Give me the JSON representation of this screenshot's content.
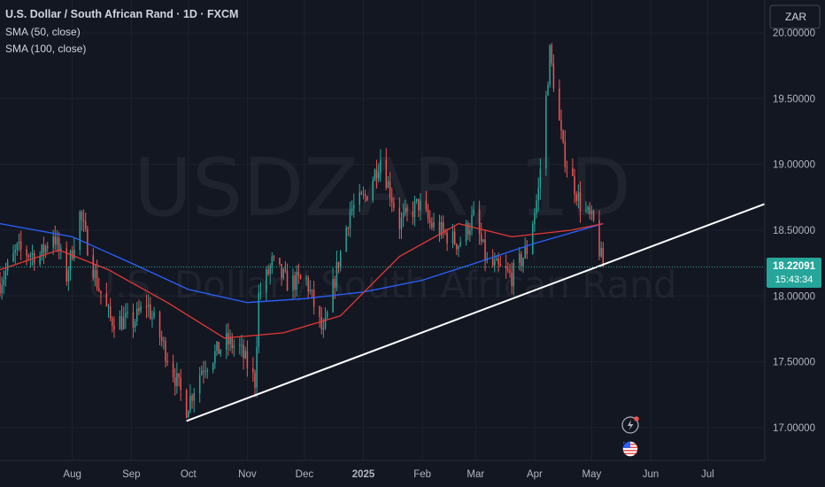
{
  "header": {
    "title": "U.S. Dollar / South African Rand · 1D · FXCM",
    "indicators": [
      "SMA (50, close)",
      "SMA (100, close)"
    ]
  },
  "currency_button": "ZAR",
  "watermark": {
    "symbol": "USDZAR, 1D",
    "name": "U.S. Dollar / South African Rand"
  },
  "price_label": {
    "price": "18.22091",
    "countdown": "15:43:34"
  },
  "colors": {
    "background": "#131722",
    "grid": "#1e222d",
    "up": "#26a69a",
    "down": "#ef5350",
    "sma50": "#e53935",
    "sma100": "#2962ff",
    "trendline": "#ffffff",
    "price_tag": "#26a69a",
    "axis_text": "#b2b5be"
  },
  "icons": {
    "flash": "lightning-alert-icon",
    "flag": "us-flag-icon"
  },
  "chart_data": {
    "type": "candlestick",
    "y_ticks": [
      "20.00000",
      "19.50000",
      "19.00000",
      "18.50000",
      "18.00000",
      "17.50000",
      "17.00000"
    ],
    "y_range": [
      16.75,
      20.25
    ],
    "x_ticks": [
      "Aug",
      "Sep",
      "Oct",
      "Nov",
      "Dec",
      "2025",
      "Feb",
      "Mar",
      "Apr",
      "May",
      "Jun",
      "Jul"
    ],
    "x_range": [
      "2024-06-24",
      "2025-07-31"
    ],
    "tick_dates": [
      "2024-08-01",
      "2024-09-01",
      "2024-10-01",
      "2024-11-01",
      "2024-12-01",
      "2025-01-01",
      "2025-02-01",
      "2025-03-01",
      "2025-04-01",
      "2025-05-01",
      "2025-06-01",
      "2025-07-01"
    ],
    "last_price": 18.22091,
    "price_anchors": [
      {
        "date": "2024-06-24",
        "close": 18.1
      },
      {
        "date": "2024-07-03",
        "close": 18.35
      },
      {
        "date": "2024-07-15",
        "close": 18.3
      },
      {
        "date": "2024-07-22",
        "close": 18.48
      },
      {
        "date": "2024-07-29",
        "close": 18.15
      },
      {
        "date": "2024-08-05",
        "close": 18.62
      },
      {
        "date": "2024-08-14",
        "close": 18.1
      },
      {
        "date": "2024-08-21",
        "close": 17.82
      },
      {
        "date": "2024-09-02",
        "close": 17.8
      },
      {
        "date": "2024-09-09",
        "close": 17.95
      },
      {
        "date": "2024-09-18",
        "close": 17.62
      },
      {
        "date": "2024-09-30",
        "close": 17.15
      },
      {
        "date": "2024-10-08",
        "close": 17.45
      },
      {
        "date": "2024-10-21",
        "close": 17.65
      },
      {
        "date": "2024-10-28",
        "close": 17.6
      },
      {
        "date": "2024-11-05",
        "close": 17.35
      },
      {
        "date": "2024-11-07",
        "close": 18.0
      },
      {
        "date": "2024-11-14",
        "close": 18.25
      },
      {
        "date": "2024-11-22",
        "close": 18.1
      },
      {
        "date": "2024-12-02",
        "close": 18.12
      },
      {
        "date": "2024-12-11",
        "close": 17.7
      },
      {
        "date": "2024-12-18",
        "close": 18.2
      },
      {
        "date": "2024-12-25",
        "close": 18.65
      },
      {
        "date": "2025-01-02",
        "close": 18.75
      },
      {
        "date": "2025-01-10",
        "close": 19.05
      },
      {
        "date": "2025-01-20",
        "close": 18.55
      },
      {
        "date": "2025-01-30",
        "close": 18.7
      },
      {
        "date": "2025-02-05",
        "close": 18.55
      },
      {
        "date": "2025-02-20",
        "close": 18.4
      },
      {
        "date": "2025-02-28",
        "close": 18.6
      },
      {
        "date": "2025-03-07",
        "close": 18.25
      },
      {
        "date": "2025-03-20",
        "close": 18.15
      },
      {
        "date": "2025-03-28",
        "close": 18.35
      },
      {
        "date": "2025-04-03",
        "close": 18.8
      },
      {
        "date": "2025-04-09",
        "close": 19.85
      },
      {
        "date": "2025-04-16",
        "close": 19.1
      },
      {
        "date": "2025-04-25",
        "close": 18.7
      },
      {
        "date": "2025-05-02",
        "close": 18.55
      },
      {
        "date": "2025-05-07",
        "close": 18.22
      }
    ],
    "sma50_points": [
      {
        "date": "2024-06-24",
        "value": 18.2
      },
      {
        "date": "2024-07-25",
        "value": 18.35
      },
      {
        "date": "2024-08-20",
        "value": 18.2
      },
      {
        "date": "2024-09-20",
        "value": 17.95
      },
      {
        "date": "2024-10-20",
        "value": 17.68
      },
      {
        "date": "2024-11-20",
        "value": 17.72
      },
      {
        "date": "2024-12-20",
        "value": 17.85
      },
      {
        "date": "2025-01-20",
        "value": 18.3
      },
      {
        "date": "2025-02-20",
        "value": 18.55
      },
      {
        "date": "2025-03-20",
        "value": 18.45
      },
      {
        "date": "2025-04-20",
        "value": 18.5
      },
      {
        "date": "2025-05-07",
        "value": 18.55
      }
    ],
    "sma100_points": [
      {
        "date": "2024-06-24",
        "value": 18.55
      },
      {
        "date": "2024-08-01",
        "value": 18.45
      },
      {
        "date": "2024-09-01",
        "value": 18.25
      },
      {
        "date": "2024-10-01",
        "value": 18.05
      },
      {
        "date": "2024-11-01",
        "value": 17.95
      },
      {
        "date": "2024-12-01",
        "value": 17.98
      },
      {
        "date": "2025-01-01",
        "value": 18.03
      },
      {
        "date": "2025-02-01",
        "value": 18.12
      },
      {
        "date": "2025-03-01",
        "value": 18.25
      },
      {
        "date": "2025-04-01",
        "value": 18.4
      },
      {
        "date": "2025-05-07",
        "value": 18.55
      }
    ],
    "trendline": [
      {
        "date": "2024-09-30",
        "value": 17.05
      },
      {
        "date": "2025-07-31",
        "value": 18.7
      }
    ]
  }
}
